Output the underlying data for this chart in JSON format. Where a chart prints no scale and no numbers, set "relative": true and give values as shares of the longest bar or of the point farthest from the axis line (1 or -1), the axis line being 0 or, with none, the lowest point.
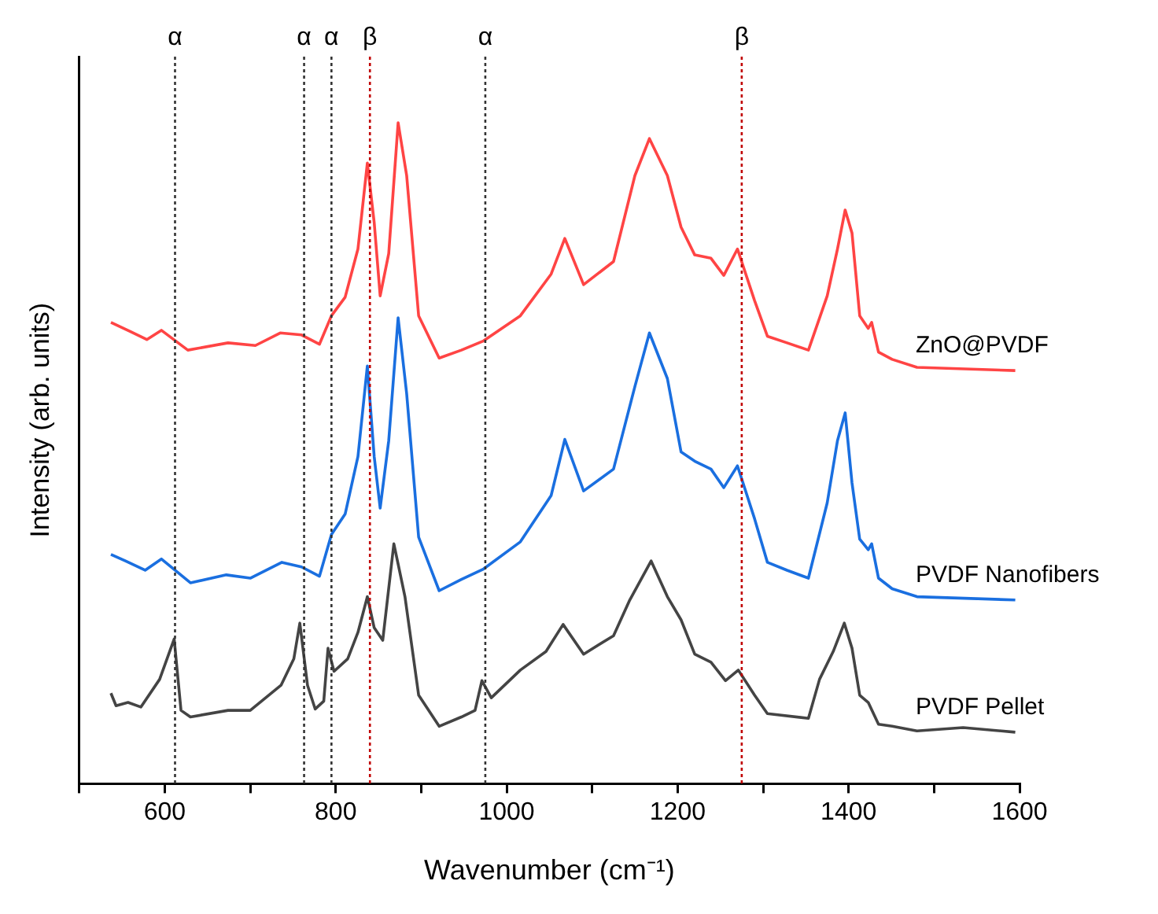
{
  "chart_data": {
    "type": "line",
    "xlabel": "Wavenumber (cm⁻¹)",
    "ylabel": "Intensity (arb. units)",
    "relative": true,
    "marker": "none",
    "line_style": "solid",
    "xlim": [
      500,
      1600
    ],
    "xticks": [
      {
        "value": 500,
        "label": null
      },
      600,
      {
        "value": 700,
        "label": null
      },
      800,
      {
        "value": 900,
        "label": null
      },
      1000,
      {
        "value": 1100,
        "label": null
      },
      1200,
      {
        "value": 1300,
        "label": null
      },
      1400,
      {
        "value": 1500,
        "label": null
      },
      1600
    ],
    "series": [
      {
        "name": "ZnO@PVDF",
        "color": "#ff4444",
        "x": [
          537,
          560,
          579,
          596,
          627,
          674,
          706,
          735,
          760,
          781,
          795,
          811,
          826,
          837,
          845,
          852,
          862,
          873,
          883,
          897,
          921,
          947,
          973,
          1016,
          1052,
          1068,
          1090,
          1125,
          1150,
          1167,
          1188,
          1204,
          1220,
          1239,
          1254,
          1270,
          1290,
          1305,
          1328,
          1353,
          1375,
          1387,
          1396,
          1404,
          1413,
          1423,
          1427,
          1435,
          1451,
          1480,
          1595
        ],
        "values": [
          0.698,
          0.684,
          0.672,
          0.686,
          0.656,
          0.667,
          0.663,
          0.682,
          0.679,
          0.665,
          0.708,
          0.736,
          0.809,
          0.939,
          0.849,
          0.738,
          0.802,
          1.0,
          0.92,
          0.708,
          0.644,
          0.656,
          0.67,
          0.708,
          0.771,
          0.825,
          0.755,
          0.79,
          0.92,
          0.976,
          0.92,
          0.842,
          0.8,
          0.795,
          0.769,
          0.809,
          0.731,
          0.677,
          0.667,
          0.656,
          0.738,
          0.809,
          0.868,
          0.833,
          0.708,
          0.689,
          0.698,
          0.653,
          0.642,
          0.63,
          0.625
        ]
      },
      {
        "name": "PVDF Nanofibers",
        "color": "#1a6fe0",
        "x": [
          537,
          554,
          577,
          596,
          630,
          672,
          700,
          737,
          760,
          781,
          795,
          811,
          826,
          837,
          845,
          852,
          862,
          873,
          883,
          897,
          921,
          947,
          973,
          1016,
          1052,
          1068,
          1090,
          1125,
          1150,
          1167,
          1188,
          1204,
          1220,
          1239,
          1254,
          1270,
          1290,
          1305,
          1328,
          1353,
          1375,
          1387,
          1396,
          1404,
          1413,
          1423,
          1427,
          1435,
          1451,
          1480,
          1595
        ],
        "values": [
          0.347,
          0.337,
          0.323,
          0.34,
          0.304,
          0.316,
          0.311,
          0.335,
          0.328,
          0.314,
          0.377,
          0.408,
          0.495,
          0.632,
          0.495,
          0.417,
          0.519,
          0.705,
          0.59,
          0.373,
          0.292,
          0.309,
          0.325,
          0.366,
          0.436,
          0.521,
          0.443,
          0.476,
          0.601,
          0.682,
          0.613,
          0.502,
          0.488,
          0.476,
          0.448,
          0.481,
          0.401,
          0.335,
          0.323,
          0.311,
          0.425,
          0.519,
          0.561,
          0.455,
          0.37,
          0.354,
          0.363,
          0.311,
          0.295,
          0.283,
          0.278
        ]
      },
      {
        "name": "PVDF Pellet",
        "color": "#444444",
        "x": [
          537,
          543,
          557,
          572,
          594,
          611,
          619,
          630,
          674,
          700,
          736,
          751,
          758,
          767,
          776,
          786,
          791,
          798,
          814,
          826,
          837,
          845,
          855,
          868,
          881,
          897,
          921,
          947,
          963,
          971,
          982,
          1016,
          1046,
          1066,
          1090,
          1125,
          1144,
          1169,
          1188,
          1204,
          1220,
          1239,
          1256,
          1271,
          1290,
          1305,
          1353,
          1366,
          1382,
          1395,
          1404,
          1413,
          1423,
          1435,
          1451,
          1480,
          1534,
          1595
        ],
        "values": [
          0.137,
          0.118,
          0.123,
          0.116,
          0.158,
          0.219,
          0.111,
          0.101,
          0.111,
          0.111,
          0.149,
          0.189,
          0.243,
          0.149,
          0.113,
          0.125,
          0.205,
          0.17,
          0.189,
          0.229,
          0.283,
          0.236,
          0.217,
          0.363,
          0.283,
          0.134,
          0.087,
          0.101,
          0.111,
          0.156,
          0.13,
          0.172,
          0.2,
          0.241,
          0.196,
          0.224,
          0.278,
          0.337,
          0.283,
          0.248,
          0.196,
          0.184,
          0.156,
          0.172,
          0.134,
          0.106,
          0.099,
          0.158,
          0.2,
          0.243,
          0.205,
          0.134,
          0.123,
          0.09,
          0.087,
          0.08,
          0.085,
          0.078
        ]
      }
    ],
    "ref_lines": [
      {
        "axis": "x",
        "value": 612,
        "label": "α",
        "color": "#333333",
        "line_style": "dotted"
      },
      {
        "axis": "x",
        "value": 763,
        "label": "α",
        "color": "#333333",
        "line_style": "dotted"
      },
      {
        "axis": "x",
        "value": 795,
        "label": "α",
        "color": "#333333",
        "line_style": "dotted"
      },
      {
        "axis": "x",
        "value": 840,
        "label": "β",
        "color": "#c00000",
        "line_style": "dotted"
      },
      {
        "axis": "x",
        "value": 975,
        "label": "α",
        "color": "#333333",
        "line_style": "dotted"
      },
      {
        "axis": "x",
        "value": 1275,
        "label": "β",
        "color": "#c00000",
        "line_style": "dotted"
      }
    ]
  }
}
